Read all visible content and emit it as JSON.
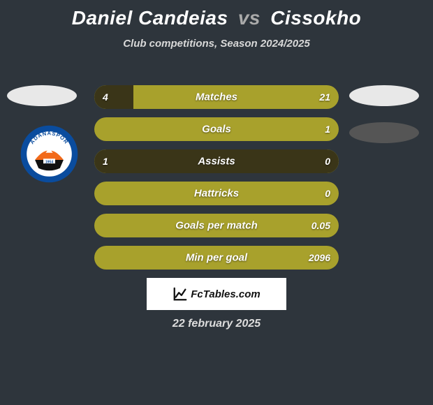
{
  "title": {
    "player1": "Daniel Candeias",
    "vs": "vs",
    "player2": "Cissokho"
  },
  "subtitle": "Club competitions, Season 2024/2025",
  "club_logo": {
    "ring_color": "#0a4c9e",
    "inner_bg": "#ffffff",
    "top_text": "ADANASPOR",
    "year": "1954",
    "accent": "#f26a1a"
  },
  "comparison": {
    "bar_bg": "#a8a12c",
    "fill_color": "#3a3518",
    "rows": [
      {
        "label": "Matches",
        "left_val": "4",
        "right_val": "21",
        "fill_pct": 16,
        "show_left": true,
        "show_right": true
      },
      {
        "label": "Goals",
        "left_val": "",
        "right_val": "1",
        "fill_pct": 0,
        "show_left": false,
        "show_right": true
      },
      {
        "label": "Assists",
        "left_val": "1",
        "right_val": "0",
        "fill_pct": 100,
        "show_left": true,
        "show_right": true
      },
      {
        "label": "Hattricks",
        "left_val": "",
        "right_val": "0",
        "fill_pct": 0,
        "show_left": false,
        "show_right": true
      },
      {
        "label": "Goals per match",
        "left_val": "",
        "right_val": "0.05",
        "fill_pct": 0,
        "show_left": false,
        "show_right": true
      },
      {
        "label": "Min per goal",
        "left_val": "",
        "right_val": "2096",
        "fill_pct": 0,
        "show_left": false,
        "show_right": true
      }
    ]
  },
  "branding": {
    "text": "FcTables.com"
  },
  "date": "22 february 2025",
  "colors": {
    "page_bg": "#2e353c",
    "text": "#ffffff",
    "subtitle": "#d8d8d8"
  }
}
